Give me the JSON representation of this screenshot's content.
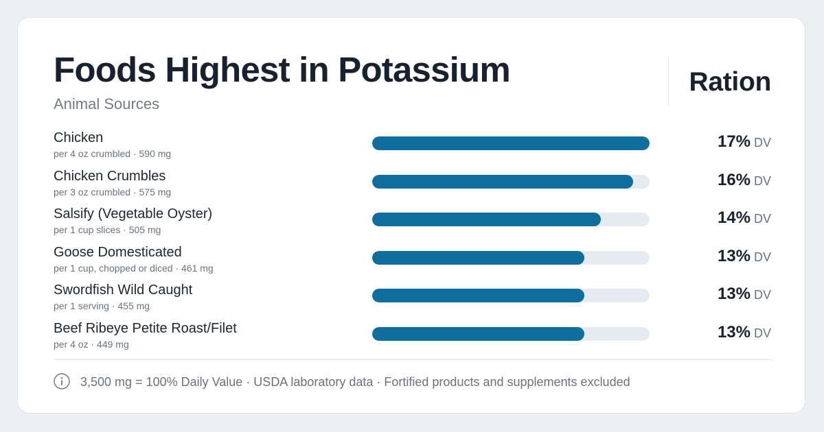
{
  "header": {
    "title": "Foods Highest in Potassium",
    "subtitle": "Animal Sources",
    "brand": "Ration"
  },
  "footer": {
    "info_icon": "info-icon",
    "note": "3,500 mg = 100% Daily Value · USDA laboratory data · Fortified products and supplements excluded"
  },
  "colors": {
    "bar_fill": "#0f6e9e",
    "bar_track": "#e6ebf0"
  },
  "chart_data": {
    "type": "bar",
    "orientation": "horizontal",
    "title": "Foods Highest in Potassium",
    "subtitle": "Animal Sources",
    "unit": "DV",
    "xlim": [
      0,
      17
    ],
    "grid": false,
    "categories": [
      "Chicken",
      "Chicken Crumbles",
      "Salsify (Vegetable Oyster)",
      "Goose Domesticated",
      "Swordfish Wild Caught",
      "Beef Ribeye Petite Roast/Filet"
    ],
    "values": [
      17,
      16,
      14,
      13,
      13,
      13
    ],
    "rows": [
      {
        "name": "Chicken",
        "serving": "per 4 oz crumbled · 590 mg",
        "pct": "17%",
        "unit": "DV",
        "value": 17
      },
      {
        "name": "Chicken Crumbles",
        "serving": "per 3 oz crumbled · 575 mg",
        "pct": "16%",
        "unit": "DV",
        "value": 16
      },
      {
        "name": "Salsify (Vegetable Oyster)",
        "serving": "per 1 cup slices · 505 mg",
        "pct": "14%",
        "unit": "DV",
        "value": 14
      },
      {
        "name": "Goose Domesticated",
        "serving": "per 1 cup, chopped or diced · 461 mg",
        "pct": "13%",
        "unit": "DV",
        "value": 13
      },
      {
        "name": "Swordfish Wild Caught",
        "serving": "per 1 serving · 455 mg",
        "pct": "13%",
        "unit": "DV",
        "value": 13
      },
      {
        "name": "Beef Ribeye Petite Roast/Filet",
        "serving": "per 4 oz · 449 mg",
        "pct": "13%",
        "unit": "DV",
        "value": 13
      }
    ]
  }
}
